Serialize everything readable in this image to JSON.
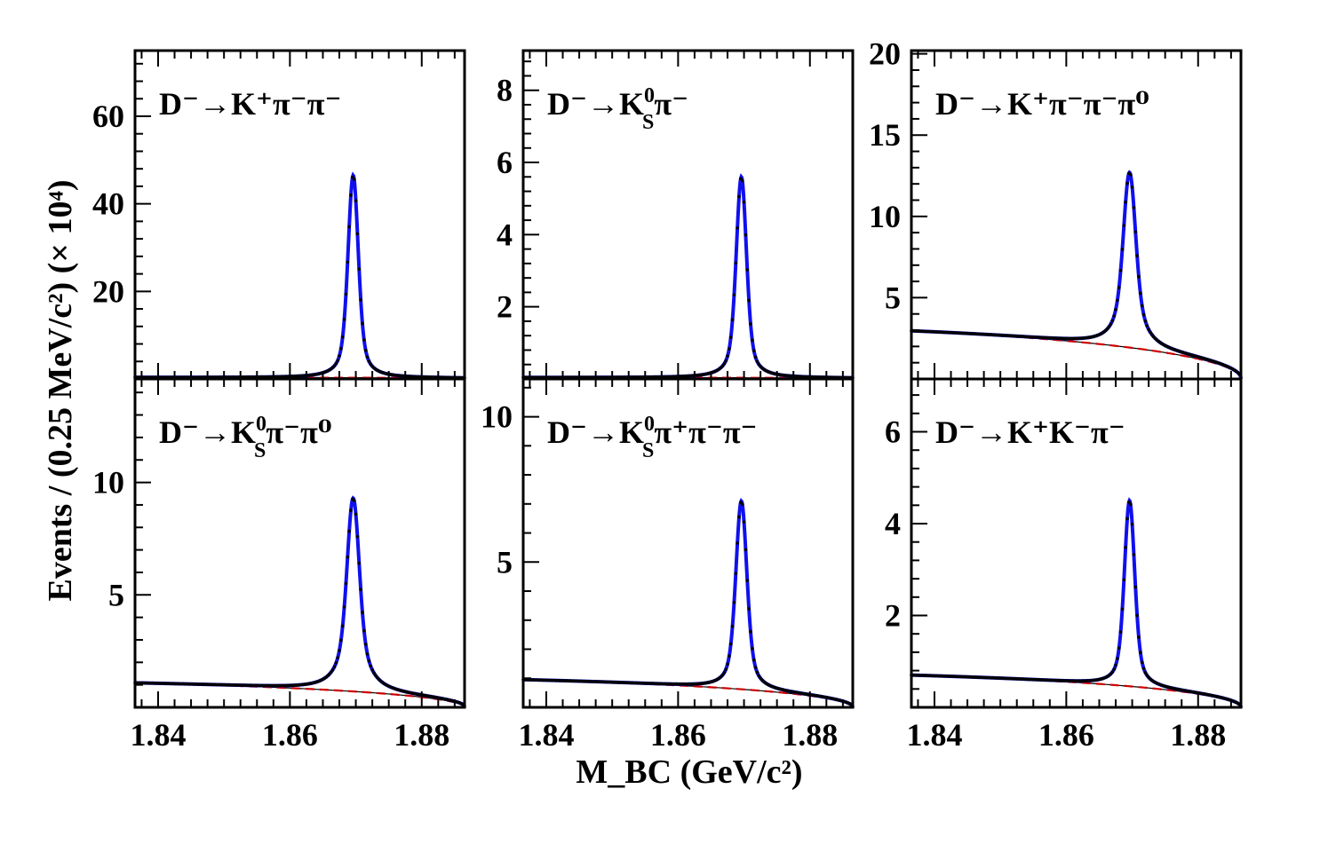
{
  "chart_data": {
    "type": "line",
    "ylabel": "Events / (0.25 MeV/c²) (× 10⁴)",
    "xlabel": "M_BC (GeV/c²)",
    "xlim": [
      1.8365,
      1.8865
    ],
    "x_ticks": [
      1.84,
      1.86,
      1.88
    ],
    "x_tick_labels": [
      "1.84",
      "1.86",
      "1.88"
    ],
    "legend_position": "none",
    "series_styles": {
      "data": "black points with error bars",
      "total_fit": "blue solid line",
      "background": "red dashed line"
    },
    "panels": [
      {
        "id": "p1",
        "label_main": "D⁻→K⁺π⁻π⁻",
        "ylim": [
          0,
          75
        ],
        "y_ticks": [
          20,
          40,
          60
        ],
        "y_tick_labels": [
          "20",
          "40",
          "60"
        ],
        "peak_mass": 1.8696,
        "peak_value": 46.5,
        "sigma": 0.00075,
        "lorentz_width": 0.0011,
        "lorentz_fraction": 0.45,
        "background_level": 0.35,
        "background_end": 0.15
      },
      {
        "id": "p2",
        "label_main": "D⁻→K",
        "label_sup": "0",
        "label_sub": "S",
        "label_tail": "π⁻",
        "ylim": [
          0,
          9.1
        ],
        "y_ticks": [
          2,
          4,
          6,
          8
        ],
        "y_tick_labels": [
          "2",
          "4",
          "6",
          "8"
        ],
        "peak_mass": 1.8696,
        "peak_value": 5.6,
        "sigma": 0.00075,
        "lorentz_width": 0.0011,
        "lorentz_fraction": 0.45,
        "background_level": 0.04,
        "background_end": 0.02
      },
      {
        "id": "p3",
        "label_main": "D⁻→K⁺π⁻π⁻π⁰",
        "ylim": [
          0,
          20.2
        ],
        "y_ticks": [
          5,
          10,
          15,
          20
        ],
        "y_tick_labels": [
          "5",
          "10",
          "15",
          "20"
        ],
        "peak_mass": 1.8696,
        "peak_value": 12.7,
        "sigma": 0.00085,
        "lorentz_width": 0.0016,
        "lorentz_fraction": 0.5,
        "background_level": 2.95,
        "background_end": 0.0
      },
      {
        "id": "p4",
        "label_main": "D⁻→K",
        "label_sup": "0",
        "label_sub": "S",
        "label_tail": "π⁻π⁰",
        "ylim": [
          0,
          14.6
        ],
        "y_ticks": [
          5,
          10
        ],
        "y_tick_labels": [
          "5",
          "10"
        ],
        "peak_mass": 1.8696,
        "peak_value": 9.3,
        "sigma": 0.00085,
        "lorentz_width": 0.0016,
        "lorentz_fraction": 0.5,
        "background_level": 1.08,
        "background_end": 0.0
      },
      {
        "id": "p5",
        "label_main": "D⁻→K",
        "label_sup": "0",
        "label_sub": "S",
        "label_tail": "π⁺π⁻π⁻",
        "ylim": [
          0,
          11.3
        ],
        "y_ticks": [
          5,
          10
        ],
        "y_tick_labels": [
          "5",
          "10"
        ],
        "peak_mass": 1.8696,
        "peak_value": 7.1,
        "sigma": 0.0008,
        "lorentz_width": 0.0012,
        "lorentz_fraction": 0.45,
        "background_level": 0.95,
        "background_end": 0.0
      },
      {
        "id": "p6",
        "label_main": "D⁻→K⁺K⁻π⁻",
        "ylim": [
          0,
          7.15
        ],
        "y_ticks": [
          2,
          4,
          6
        ],
        "y_tick_labels": [
          "2",
          "4",
          "6"
        ],
        "peak_mass": 1.8696,
        "peak_value": 4.5,
        "sigma": 0.00075,
        "lorentz_width": 0.0011,
        "lorentz_fraction": 0.45,
        "background_level": 0.7,
        "background_end": 0.0
      }
    ]
  }
}
